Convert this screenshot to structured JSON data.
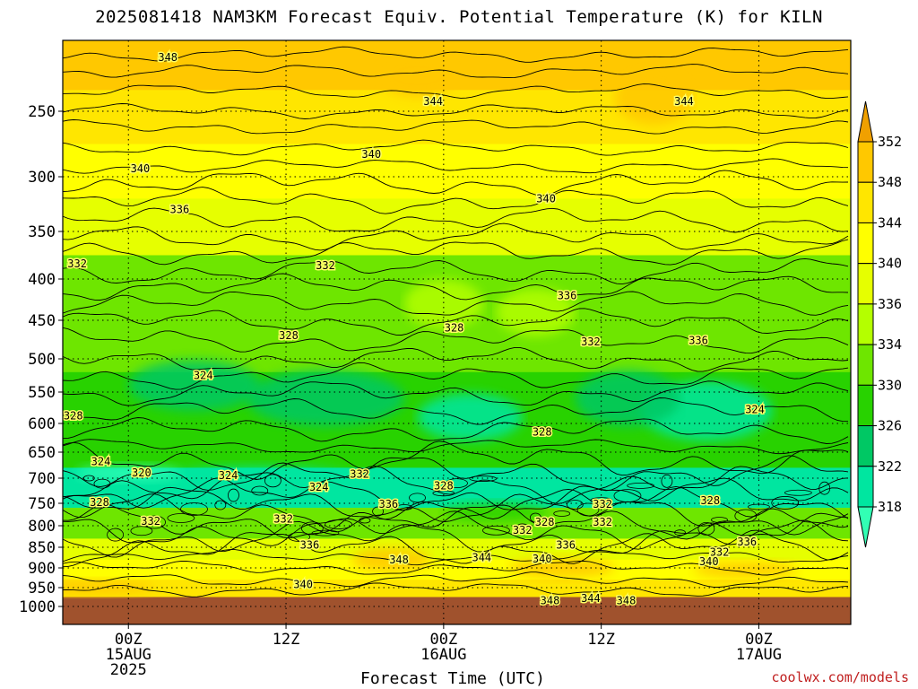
{
  "chart_data": {
    "type": "heatmap",
    "title": "2025081418 NAM3KM Forecast Equiv. Potential Temperature (K) for KILN",
    "xlabel": "Forecast Time (UTC)",
    "ylabel": "",
    "watermark": "coolwx.com/models",
    "y_axis": {
      "scale": "pressure (log-like)",
      "ticks": [
        250,
        300,
        350,
        400,
        450,
        500,
        550,
        600,
        650,
        700,
        750,
        800,
        850,
        900,
        950,
        1000
      ],
      "range_hPa": [
        200,
        1020
      ]
    },
    "x_axis": {
      "range_hours": [
        -5,
        55
      ],
      "ticks": [
        {
          "hour": 0,
          "labels": [
            "00Z",
            "15AUG",
            "2025"
          ]
        },
        {
          "hour": 12,
          "labels": [
            "12Z"
          ]
        },
        {
          "hour": 24,
          "labels": [
            "00Z",
            "16AUG"
          ]
        },
        {
          "hour": 36,
          "labels": [
            "12Z"
          ]
        },
        {
          "hour": 48,
          "labels": [
            "00Z",
            "17AUG"
          ]
        }
      ]
    },
    "colorbar": {
      "levels": [
        352,
        348,
        344,
        340,
        336,
        334,
        330,
        326,
        322,
        318
      ],
      "colors": [
        "#f0a000",
        "#ffc800",
        "#ffe600",
        "#ffff00",
        "#e6ff00",
        "#b4ff00",
        "#6ee600",
        "#28d200",
        "#00c864",
        "#00e6a0",
        "#32ffb4"
      ]
    },
    "field_bands": [
      {
        "value": 349,
        "p_top": 200,
        "p_bot": 235
      },
      {
        "value": 344,
        "p_top": 235,
        "p_bot": 275
      },
      {
        "value": 340,
        "p_top": 275,
        "p_bot": 320
      },
      {
        "value": 337,
        "p_top": 320,
        "p_bot": 375
      },
      {
        "value": 333,
        "p_top": 375,
        "p_bot": 445
      },
      {
        "value": 330,
        "p_top": 445,
        "p_bot": 520
      },
      {
        "value": 326,
        "p_top": 520,
        "p_bot": 680
      },
      {
        "value": 323,
        "p_top": 680,
        "p_bot": 760
      },
      {
        "value": 330,
        "p_top": 760,
        "p_bot": 830
      },
      {
        "value": 336,
        "p_top": 830,
        "p_bot": 880
      },
      {
        "value": 341,
        "p_top": 880,
        "p_bot": 930
      },
      {
        "value": 346,
        "p_top": 930,
        "p_bot": 975
      }
    ],
    "surface": {
      "p": 975,
      "color": "#a0522d"
    },
    "contour_labels": [
      {
        "text": "348",
        "x": 3.0,
        "p": 212
      },
      {
        "text": "344",
        "x": 23.2,
        "p": 243
      },
      {
        "text": "344",
        "x": 42.3,
        "p": 243
      },
      {
        "text": "340",
        "x": 18.5,
        "p": 283
      },
      {
        "text": "340",
        "x": 0.9,
        "p": 294
      },
      {
        "text": "340",
        "x": 31.8,
        "p": 320
      },
      {
        "text": "336",
        "x": 3.9,
        "p": 330
      },
      {
        "text": "332",
        "x": -3.9,
        "p": 384
      },
      {
        "text": "332",
        "x": 15.0,
        "p": 386
      },
      {
        "text": "336",
        "x": 33.4,
        "p": 420
      },
      {
        "text": "328",
        "x": 12.2,
        "p": 470
      },
      {
        "text": "332",
        "x": 35.2,
        "p": 478
      },
      {
        "text": "336",
        "x": 43.4,
        "p": 476
      },
      {
        "text": "328",
        "x": 24.8,
        "p": 460
      },
      {
        "text": "324",
        "x": 5.7,
        "p": 525
      },
      {
        "text": "328",
        "x": -4.2,
        "p": 588
      },
      {
        "text": "324",
        "x": 47.7,
        "p": 578
      },
      {
        "text": "328",
        "x": 31.5,
        "p": 615
      },
      {
        "text": "324",
        "x": -2.1,
        "p": 668
      },
      {
        "text": "320",
        "x": 1.0,
        "p": 690
      },
      {
        "text": "324",
        "x": 7.6,
        "p": 695
      },
      {
        "text": "332",
        "x": 17.6,
        "p": 692
      },
      {
        "text": "324",
        "x": 14.5,
        "p": 718
      },
      {
        "text": "328",
        "x": 24.0,
        "p": 715
      },
      {
        "text": "328",
        "x": -2.2,
        "p": 748
      },
      {
        "text": "336",
        "x": 19.8,
        "p": 752
      },
      {
        "text": "332",
        "x": 36.1,
        "p": 752
      },
      {
        "text": "328",
        "x": 44.3,
        "p": 745
      },
      {
        "text": "332",
        "x": 11.8,
        "p": 785
      },
      {
        "text": "332",
        "x": 1.7,
        "p": 790
      },
      {
        "text": "328",
        "x": 31.7,
        "p": 792
      },
      {
        "text": "332",
        "x": 36.1,
        "p": 792
      },
      {
        "text": "332",
        "x": 30.0,
        "p": 810
      },
      {
        "text": "336",
        "x": 13.8,
        "p": 845
      },
      {
        "text": "336",
        "x": 33.3,
        "p": 845
      },
      {
        "text": "336",
        "x": 47.1,
        "p": 838
      },
      {
        "text": "332",
        "x": 45.0,
        "p": 862
      },
      {
        "text": "348",
        "x": 20.6,
        "p": 880
      },
      {
        "text": "344",
        "x": 26.9,
        "p": 875
      },
      {
        "text": "340",
        "x": 31.5,
        "p": 878
      },
      {
        "text": "340",
        "x": 44.2,
        "p": 885
      },
      {
        "text": "340",
        "x": 13.3,
        "p": 942
      },
      {
        "text": "348",
        "x": 32.1,
        "p": 985
      },
      {
        "text": "344",
        "x": 35.2,
        "p": 978
      },
      {
        "text": "348",
        "x": 37.9,
        "p": 985
      }
    ]
  }
}
